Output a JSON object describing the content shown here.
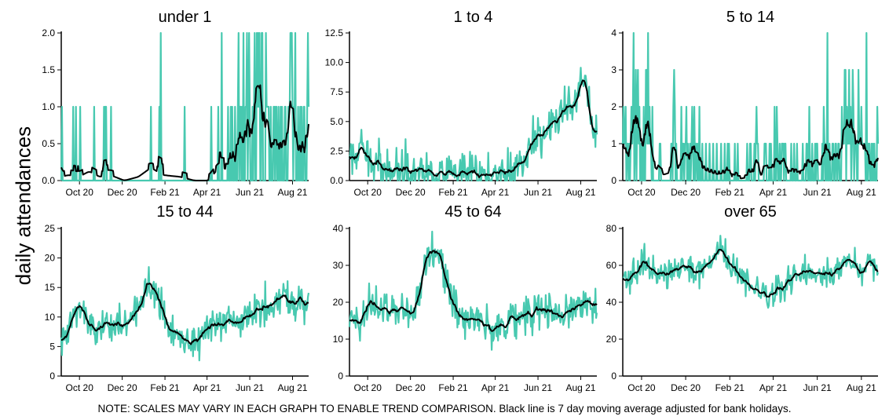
{
  "ylabel": "daily attendances",
  "note": "NOTE: SCALES MAY VARY IN EACH GRAPH TO ENABLE TREND COMPARISON. Black line is 7 day moving average adjusted for bank holidays.",
  "colors": {
    "daily": "#48C9B0",
    "average": "#000000"
  },
  "chart_data": [
    {
      "type": "line",
      "title": "under 1",
      "ylim": [
        0,
        2
      ],
      "yticks": [
        "0.0",
        "0.5",
        "1.0",
        "1.5",
        "2.0"
      ],
      "xticks": [
        "Oct 20",
        "Dec 20",
        "Feb 21",
        "Apr 21",
        "Jun 21",
        "Aug 21"
      ],
      "anchors_days": [
        0,
        10,
        25,
        40,
        55,
        70,
        90,
        110,
        128,
        145,
        170,
        190,
        210,
        225,
        240,
        255,
        268,
        280,
        292,
        305,
        325,
        345,
        353
      ],
      "avg_anchors": [
        0.1,
        0.15,
        0.1,
        0.25,
        0.1,
        0.15,
        0.0,
        0.1,
        0.35,
        0.15,
        0.1,
        0.0,
        0.0,
        0.35,
        0.3,
        0.45,
        0.5,
        1.55,
        0.8,
        0.5,
        0.75,
        0.45,
        0.55
      ],
      "noise": 0.55,
      "discrete": true
    },
    {
      "type": "line",
      "title": "1 to 4",
      "ylim": [
        0,
        12.5
      ],
      "yticks": [
        "0.0",
        "2.5",
        "5.0",
        "7.5",
        "10.0",
        "12.5"
      ],
      "xticks": [
        "Oct 20",
        "Dec 20",
        "Feb 21",
        "Apr 21",
        "Jun 21",
        "Aug 21"
      ],
      "anchors_days": [
        0,
        15,
        30,
        50,
        70,
        90,
        110,
        130,
        150,
        170,
        190,
        210,
        230,
        250,
        265,
        280,
        295,
        310,
        325,
        335,
        345,
        353
      ],
      "avg_anchors": [
        1.5,
        2.4,
        1.8,
        1.0,
        1.0,
        1.1,
        0.9,
        0.6,
        0.3,
        0.4,
        0.3,
        0.8,
        0.8,
        1.8,
        3.5,
        4.5,
        5.0,
        6.0,
        6.5,
        9.0,
        4.5,
        4.0
      ],
      "noise": 1.4,
      "discrete": false
    },
    {
      "type": "line",
      "title": "5 to 14",
      "ylim": [
        0,
        4
      ],
      "yticks": [
        "0",
        "1",
        "2",
        "3",
        "4"
      ],
      "xticks": [
        "Oct 20",
        "Dec 20",
        "Feb 21",
        "Apr 21",
        "Jun 21",
        "Aug 21"
      ],
      "anchors_days": [
        0,
        10,
        18,
        28,
        40,
        55,
        70,
        85,
        100,
        115,
        130,
        145,
        160,
        180,
        200,
        220,
        240,
        260,
        280,
        300,
        315,
        330,
        345,
        353
      ],
      "avg_anchors": [
        0.5,
        0.8,
        1.8,
        1.3,
        0.9,
        0.3,
        0.5,
        0.6,
        0.9,
        0.4,
        0.2,
        0.3,
        0.1,
        0.2,
        0.4,
        0.5,
        0.3,
        0.6,
        0.8,
        0.9,
        1.7,
        0.8,
        0.4,
        0.5
      ],
      "noise": 0.8,
      "discrete": true
    },
    {
      "type": "line",
      "title": "15 to 44",
      "ylim": [
        0,
        25
      ],
      "yticks": [
        "0",
        "5",
        "10",
        "15",
        "20",
        "25"
      ],
      "xticks": [
        "Oct 20",
        "Dec 20",
        "Feb 21",
        "Apr 21",
        "Jun 21",
        "Aug 21"
      ],
      "anchors_days": [
        0,
        10,
        25,
        40,
        55,
        70,
        85,
        100,
        115,
        125,
        140,
        155,
        170,
        185,
        200,
        215,
        230,
        250,
        270,
        290,
        310,
        325,
        340,
        353
      ],
      "avg_anchors": [
        5.5,
        7.0,
        13.0,
        8.5,
        8.0,
        9.5,
        8.5,
        9.0,
        12.0,
        17.0,
        13.0,
        8.0,
        7.5,
        5.5,
        7.0,
        8.5,
        8.5,
        9.0,
        10.0,
        12.0,
        13.5,
        12.5,
        13.5,
        12.0
      ],
      "noise": 2.6,
      "discrete": false
    },
    {
      "type": "line",
      "title": "45 to 64",
      "ylim": [
        0,
        40
      ],
      "yticks": [
        "0",
        "10",
        "20",
        "30",
        "40"
      ],
      "xticks": [
        "Oct 20",
        "Dec 20",
        "Feb 21",
        "Apr 21",
        "Jun 21",
        "Aug 21"
      ],
      "anchors_days": [
        0,
        15,
        30,
        45,
        60,
        75,
        90,
        100,
        110,
        120,
        130,
        145,
        160,
        180,
        200,
        220,
        240,
        260,
        280,
        300,
        320,
        340,
        353
      ],
      "avg_anchors": [
        14.0,
        15.0,
        21.0,
        18.0,
        17.0,
        19.0,
        17.0,
        22.0,
        33.0,
        35.0,
        33.0,
        20.0,
        16.0,
        15.0,
        13.0,
        14.0,
        16.0,
        17.0,
        18.0,
        16.0,
        18.0,
        21.0,
        20.0
      ],
      "noise": 4.0,
      "discrete": false
    },
    {
      "type": "line",
      "title": "over 65",
      "ylim": [
        0,
        80
      ],
      "yticks": [
        "0",
        "20",
        "40",
        "60",
        "80"
      ],
      "xticks": [
        "Oct 20",
        "Dec 20",
        "Feb 21",
        "Apr 21",
        "Jun 21",
        "Aug 21"
      ],
      "anchors_days": [
        0,
        15,
        30,
        45,
        60,
        75,
        90,
        105,
        120,
        135,
        150,
        165,
        180,
        195,
        210,
        225,
        240,
        255,
        270,
        285,
        300,
        315,
        330,
        345,
        353
      ],
      "avg_anchors": [
        50.0,
        55.0,
        62.0,
        57.0,
        55.0,
        58.0,
        60.0,
        55.0,
        62.0,
        68.0,
        62.0,
        52.0,
        47.0,
        44.0,
        45.0,
        50.0,
        55.0,
        58.0,
        57.0,
        55.0,
        58.0,
        65.0,
        55.0,
        63.0,
        54.0
      ],
      "noise": 6.0,
      "discrete": false
    }
  ]
}
